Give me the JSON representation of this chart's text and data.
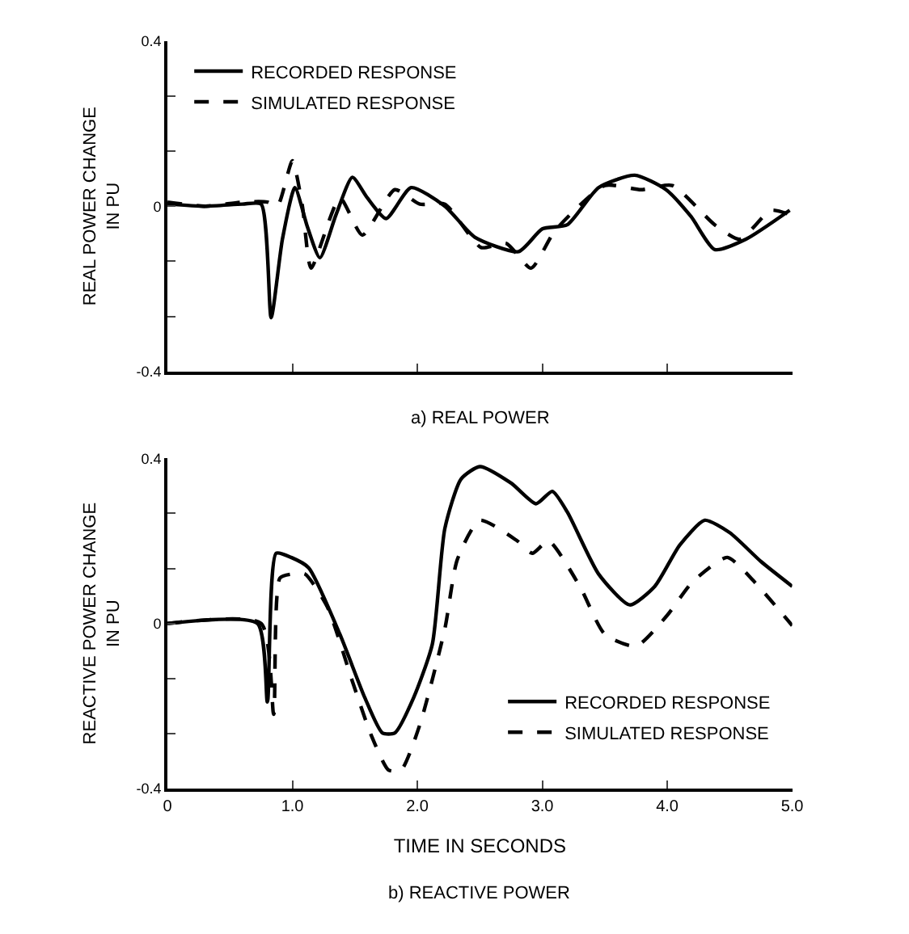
{
  "chart_data": [
    {
      "type": "line",
      "title": "a) REAL POWER",
      "ylabel": "REAL POWER CHANGE\nIN PU",
      "xlim": [
        0,
        5
      ],
      "xticks": [
        {
          "value": 1,
          "label": null
        },
        {
          "value": 2,
          "label": null
        },
        {
          "value": 3,
          "label": null
        },
        {
          "value": 4,
          "label": null
        },
        {
          "value": 5,
          "label": null
        }
      ],
      "ylim": [
        -0.4,
        0.4
      ],
      "yticks": [
        {
          "value": -0.4,
          "label": "-0.4"
        },
        {
          "value": -0.267,
          "label": null
        },
        {
          "value": -0.133,
          "label": null
        },
        0,
        {
          "value": 0.133,
          "label": null
        },
        {
          "value": 0.267,
          "label": null
        },
        {
          "value": 0.4,
          "label": "0.4"
        }
      ],
      "tick_labels": "y",
      "grid": false,
      "legend": "top left",
      "marker": "none",
      "series": [
        {
          "name": "RECORDED RESPONSE",
          "color": "#000000",
          "line_style": "solid",
          "x": [
            0,
            0.3,
            0.6,
            0.75,
            0.83,
            0.92,
            1.02,
            1.12,
            1.22,
            1.35,
            1.48,
            1.6,
            1.75,
            1.95,
            2.22,
            2.46,
            2.81,
            3.0,
            3.2,
            3.45,
            3.74,
            3.99,
            4.19,
            4.38,
            4.63,
            4.98
          ],
          "values": [
            0.005,
            0.0,
            0.005,
            0.005,
            -0.27,
            -0.08,
            0.045,
            -0.05,
            -0.125,
            -0.02,
            0.07,
            0.02,
            -0.03,
            0.045,
            0.0,
            -0.075,
            -0.11,
            -0.055,
            -0.045,
            0.045,
            0.075,
            0.04,
            -0.025,
            -0.105,
            -0.08,
            -0.01
          ]
        },
        {
          "name": "SIMULATED RESPONSE",
          "color": "#000000",
          "line_style": "dashed",
          "x": [
            0,
            0.3,
            0.6,
            0.8,
            0.88,
            1.0,
            1.08,
            1.15,
            1.38,
            1.56,
            1.82,
            2.02,
            2.22,
            2.51,
            2.71,
            2.91,
            3.1,
            3.5,
            3.79,
            4.04,
            4.38,
            4.58,
            4.83,
            4.98
          ],
          "values": [
            0.01,
            0.0,
            0.01,
            0.01,
            0.0,
            0.11,
            0.0,
            -0.15,
            0.02,
            -0.07,
            0.04,
            0.005,
            0.005,
            -0.1,
            -0.09,
            -0.15,
            -0.06,
            0.05,
            0.04,
            0.05,
            -0.045,
            -0.08,
            -0.01,
            -0.02
          ]
        }
      ]
    },
    {
      "type": "line",
      "title": "b) REACTIVE POWER",
      "xlabel": "TIME IN SECONDS",
      "ylabel": "REACTIVE POWER CHANGE\nIN PU",
      "xlim": [
        0,
        5
      ],
      "xticks": [
        0,
        {
          "value": 1,
          "label": "1.0"
        },
        {
          "value": 2,
          "label": "2.0"
        },
        {
          "value": 3,
          "label": "3.0"
        },
        {
          "value": 4,
          "label": "4.0"
        },
        {
          "value": 5,
          "label": "5.0"
        }
      ],
      "ylim": [
        -0.4,
        0.4
      ],
      "yticks": [
        {
          "value": -0.4,
          "label": "-0.4"
        },
        {
          "value": -0.267,
          "label": null
        },
        {
          "value": -0.133,
          "label": null
        },
        0,
        {
          "value": 0.133,
          "label": null
        },
        {
          "value": 0.267,
          "label": null
        },
        {
          "value": 0.4,
          "label": "0.4"
        }
      ],
      "grid": false,
      "legend": "bottom right",
      "marker": "none",
      "series": [
        {
          "name": "RECORDED RESPONSE",
          "color": "#000000",
          "line_style": "solid",
          "x": [
            0,
            0.72,
            0.8,
            0.87,
            0.99,
            1.13,
            1.38,
            1.58,
            1.72,
            1.82,
            1.97,
            2.12,
            2.22,
            2.35,
            2.5,
            2.75,
            2.95,
            3.08,
            3.2,
            3.45,
            3.7,
            3.9,
            4.1,
            4.3,
            4.5,
            4.75,
            5.0
          ],
          "values": [
            0,
            0,
            -0.19,
            0.17,
            0.16,
            0.135,
            -0.026,
            -0.18,
            -0.265,
            -0.265,
            -0.18,
            -0.05,
            0.23,
            0.35,
            0.38,
            0.34,
            0.29,
            0.32,
            0.27,
            0.12,
            0.045,
            0.09,
            0.19,
            0.25,
            0.22,
            0.15,
            0.09
          ]
        },
        {
          "name": "SIMULATED RESPONSE",
          "color": "#000000",
          "line_style": "dashed",
          "x": [
            0,
            0.75,
            0.85,
            0.9,
            1.0,
            1.1,
            1.28,
            1.48,
            1.63,
            1.77,
            1.87,
            2.02,
            2.22,
            2.32,
            2.5,
            2.8,
            2.92,
            3.05,
            3.3,
            3.5,
            3.75,
            4.0,
            4.2,
            4.48,
            4.7,
            5.0
          ],
          "values": [
            0,
            0,
            -0.22,
            0.11,
            0.12,
            0.12,
            0.04,
            -0.14,
            -0.27,
            -0.355,
            -0.355,
            -0.245,
            -0.013,
            0.155,
            0.25,
            0.2,
            0.17,
            0.2,
            0.09,
            -0.026,
            -0.055,
            0.02,
            0.1,
            0.16,
            0.1,
            -0.005
          ]
        }
      ]
    }
  ]
}
